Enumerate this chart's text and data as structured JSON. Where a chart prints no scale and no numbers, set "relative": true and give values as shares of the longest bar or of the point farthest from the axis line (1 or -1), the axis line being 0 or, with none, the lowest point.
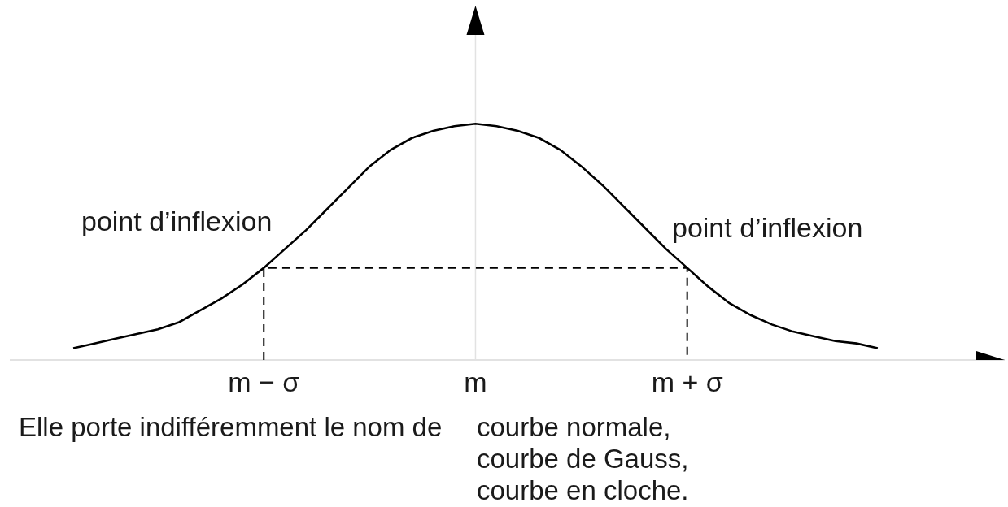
{
  "chart_data": {
    "type": "line",
    "relative": true,
    "line_style": "solid",
    "categories": [
      null,
      null,
      null,
      null,
      null,
      null,
      null,
      null,
      null,
      "m − σ",
      null,
      null,
      null,
      null,
      null,
      null,
      null,
      null,
      null,
      "m",
      null,
      null,
      null,
      null,
      null,
      null,
      null,
      null,
      null,
      "m + σ",
      null,
      null,
      null,
      null,
      null,
      null,
      null,
      null,
      null
    ],
    "series": [
      {
        "color": "#000000",
        "values": [
          0.05,
          0.07,
          0.09,
          0.11,
          0.13,
          0.16,
          0.21,
          0.26,
          0.32,
          0.39,
          0.47,
          0.55,
          0.64,
          0.73,
          0.82,
          0.89,
          0.94,
          0.97,
          0.99,
          1,
          0.99,
          0.97,
          0.94,
          0.89,
          0.82,
          0.74,
          0.65,
          0.56,
          0.47,
          0.39,
          0.31,
          0.24,
          0.19,
          0.15,
          0.12,
          0.1,
          0.08,
          0.07,
          0.05
        ]
      },
      {
        "color": "#000000",
        "line_style": "dashed",
        "x": [
          "m − σ",
          "m − σ",
          "m + σ",
          "m + σ"
        ],
        "values": [
          0,
          0.39,
          0.39,
          0
        ]
      }
    ],
    "ref_lines": [
      {
        "axis": "x",
        "value": "m",
        "color": "#e2e2e2"
      }
    ],
    "annotations": [
      {
        "text": "point d’inflexion",
        "x": "m − σ",
        "y": 0.39
      },
      {
        "text": "point d’inflexion",
        "x": "m + σ",
        "y": 0.39
      },
      "Elle porte indifféremment le nom de",
      "courbe normale,",
      "courbe de Gauss,",
      "courbe en cloche."
    ]
  }
}
